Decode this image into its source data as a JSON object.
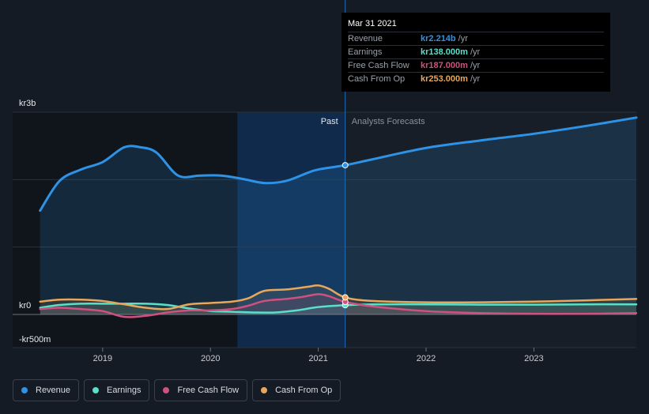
{
  "tooltip": {
    "date": "Mar 31 2021",
    "rows": [
      {
        "label": "Revenue",
        "value": "kr2.214b",
        "unit": "/yr",
        "color": "#2e93e6"
      },
      {
        "label": "Earnings",
        "value": "kr138.000m",
        "unit": "/yr",
        "color": "#58e0c8"
      },
      {
        "label": "Free Cash Flow",
        "value": "kr187.000m",
        "unit": "/yr",
        "color": "#d0507f"
      },
      {
        "label": "Cash From Op",
        "value": "kr253.000m",
        "unit": "/yr",
        "color": "#e8a75a"
      }
    ]
  },
  "legend": [
    {
      "label": "Revenue",
      "color": "#2e93e6"
    },
    {
      "label": "Earnings",
      "color": "#58e0c8"
    },
    {
      "label": "Free Cash Flow",
      "color": "#d0507f"
    },
    {
      "label": "Cash From Op",
      "color": "#e8a75a"
    }
  ],
  "chart_data": {
    "type": "line",
    "y_tick_labels": [
      "kr3b",
      "kr0",
      "-kr500m"
    ],
    "y_tick_values": [
      3000,
      0,
      -500
    ],
    "x_tick_labels": [
      "2019",
      "2020",
      "2021",
      "2022",
      "2023"
    ],
    "x_tick_values": [
      2019,
      2020,
      2021,
      2022,
      2023
    ],
    "xlim": [
      2018.4,
      2023.95
    ],
    "ylim": [
      -500,
      3000
    ],
    "past_label": "Past",
    "forecast_label": "Analysts Forecasts",
    "divider_x": 2021.25,
    "highlight_range": [
      2020.25,
      2021.25
    ],
    "series": [
      {
        "name": "Revenue",
        "color": "#2e93e6",
        "x": [
          2018.42,
          2018.6,
          2018.8,
          2019.0,
          2019.2,
          2019.35,
          2019.5,
          2019.7,
          2019.9,
          2020.1,
          2020.3,
          2020.5,
          2020.7,
          2020.9,
          2021.0,
          2021.25,
          2021.5,
          2022.0,
          2022.5,
          2023.0,
          2023.5,
          2023.95
        ],
        "y": [
          1540,
          1980,
          2150,
          2260,
          2480,
          2480,
          2400,
          2060,
          2060,
          2060,
          2010,
          1950,
          1980,
          2100,
          2150,
          2214,
          2300,
          2470,
          2580,
          2680,
          2800,
          2920
        ]
      },
      {
        "name": "Earnings",
        "color": "#58e0c8",
        "x": [
          2018.42,
          2018.6,
          2018.8,
          2019.0,
          2019.2,
          2019.4,
          2019.6,
          2019.8,
          2020.0,
          2020.2,
          2020.4,
          2020.6,
          2020.8,
          2021.0,
          2021.25,
          2021.5,
          2022.0,
          2022.5,
          2023.0,
          2023.5,
          2023.95
        ],
        "y": [
          100,
          140,
          160,
          160,
          160,
          160,
          140,
          90,
          50,
          40,
          30,
          30,
          60,
          110,
          138,
          150,
          150,
          145,
          145,
          150,
          150
        ]
      },
      {
        "name": "Free Cash Flow",
        "color": "#d0507f",
        "x": [
          2018.42,
          2018.6,
          2018.8,
          2019.0,
          2019.15,
          2019.25,
          2019.45,
          2019.6,
          2019.8,
          2020.0,
          2020.2,
          2020.35,
          2020.5,
          2020.7,
          2020.85,
          2021.0,
          2021.1,
          2021.25,
          2021.5,
          2022.0,
          2022.5,
          2023.0,
          2023.5,
          2023.95
        ],
        "y": [
          80,
          100,
          80,
          50,
          -20,
          -40,
          -10,
          30,
          60,
          60,
          80,
          130,
          200,
          230,
          260,
          300,
          270,
          187,
          120,
          50,
          20,
          10,
          10,
          20
        ]
      },
      {
        "name": "Cash From Op",
        "color": "#e8a75a",
        "x": [
          2018.42,
          2018.6,
          2018.8,
          2019.0,
          2019.2,
          2019.4,
          2019.6,
          2019.8,
          2020.0,
          2020.2,
          2020.35,
          2020.5,
          2020.7,
          2020.9,
          2021.0,
          2021.1,
          2021.25,
          2021.5,
          2022.0,
          2022.5,
          2023.0,
          2023.5,
          2023.95
        ],
        "y": [
          190,
          220,
          220,
          200,
          150,
          100,
          80,
          150,
          170,
          190,
          240,
          350,
          370,
          410,
          430,
          380,
          253,
          200,
          180,
          180,
          190,
          210,
          230
        ]
      }
    ]
  }
}
